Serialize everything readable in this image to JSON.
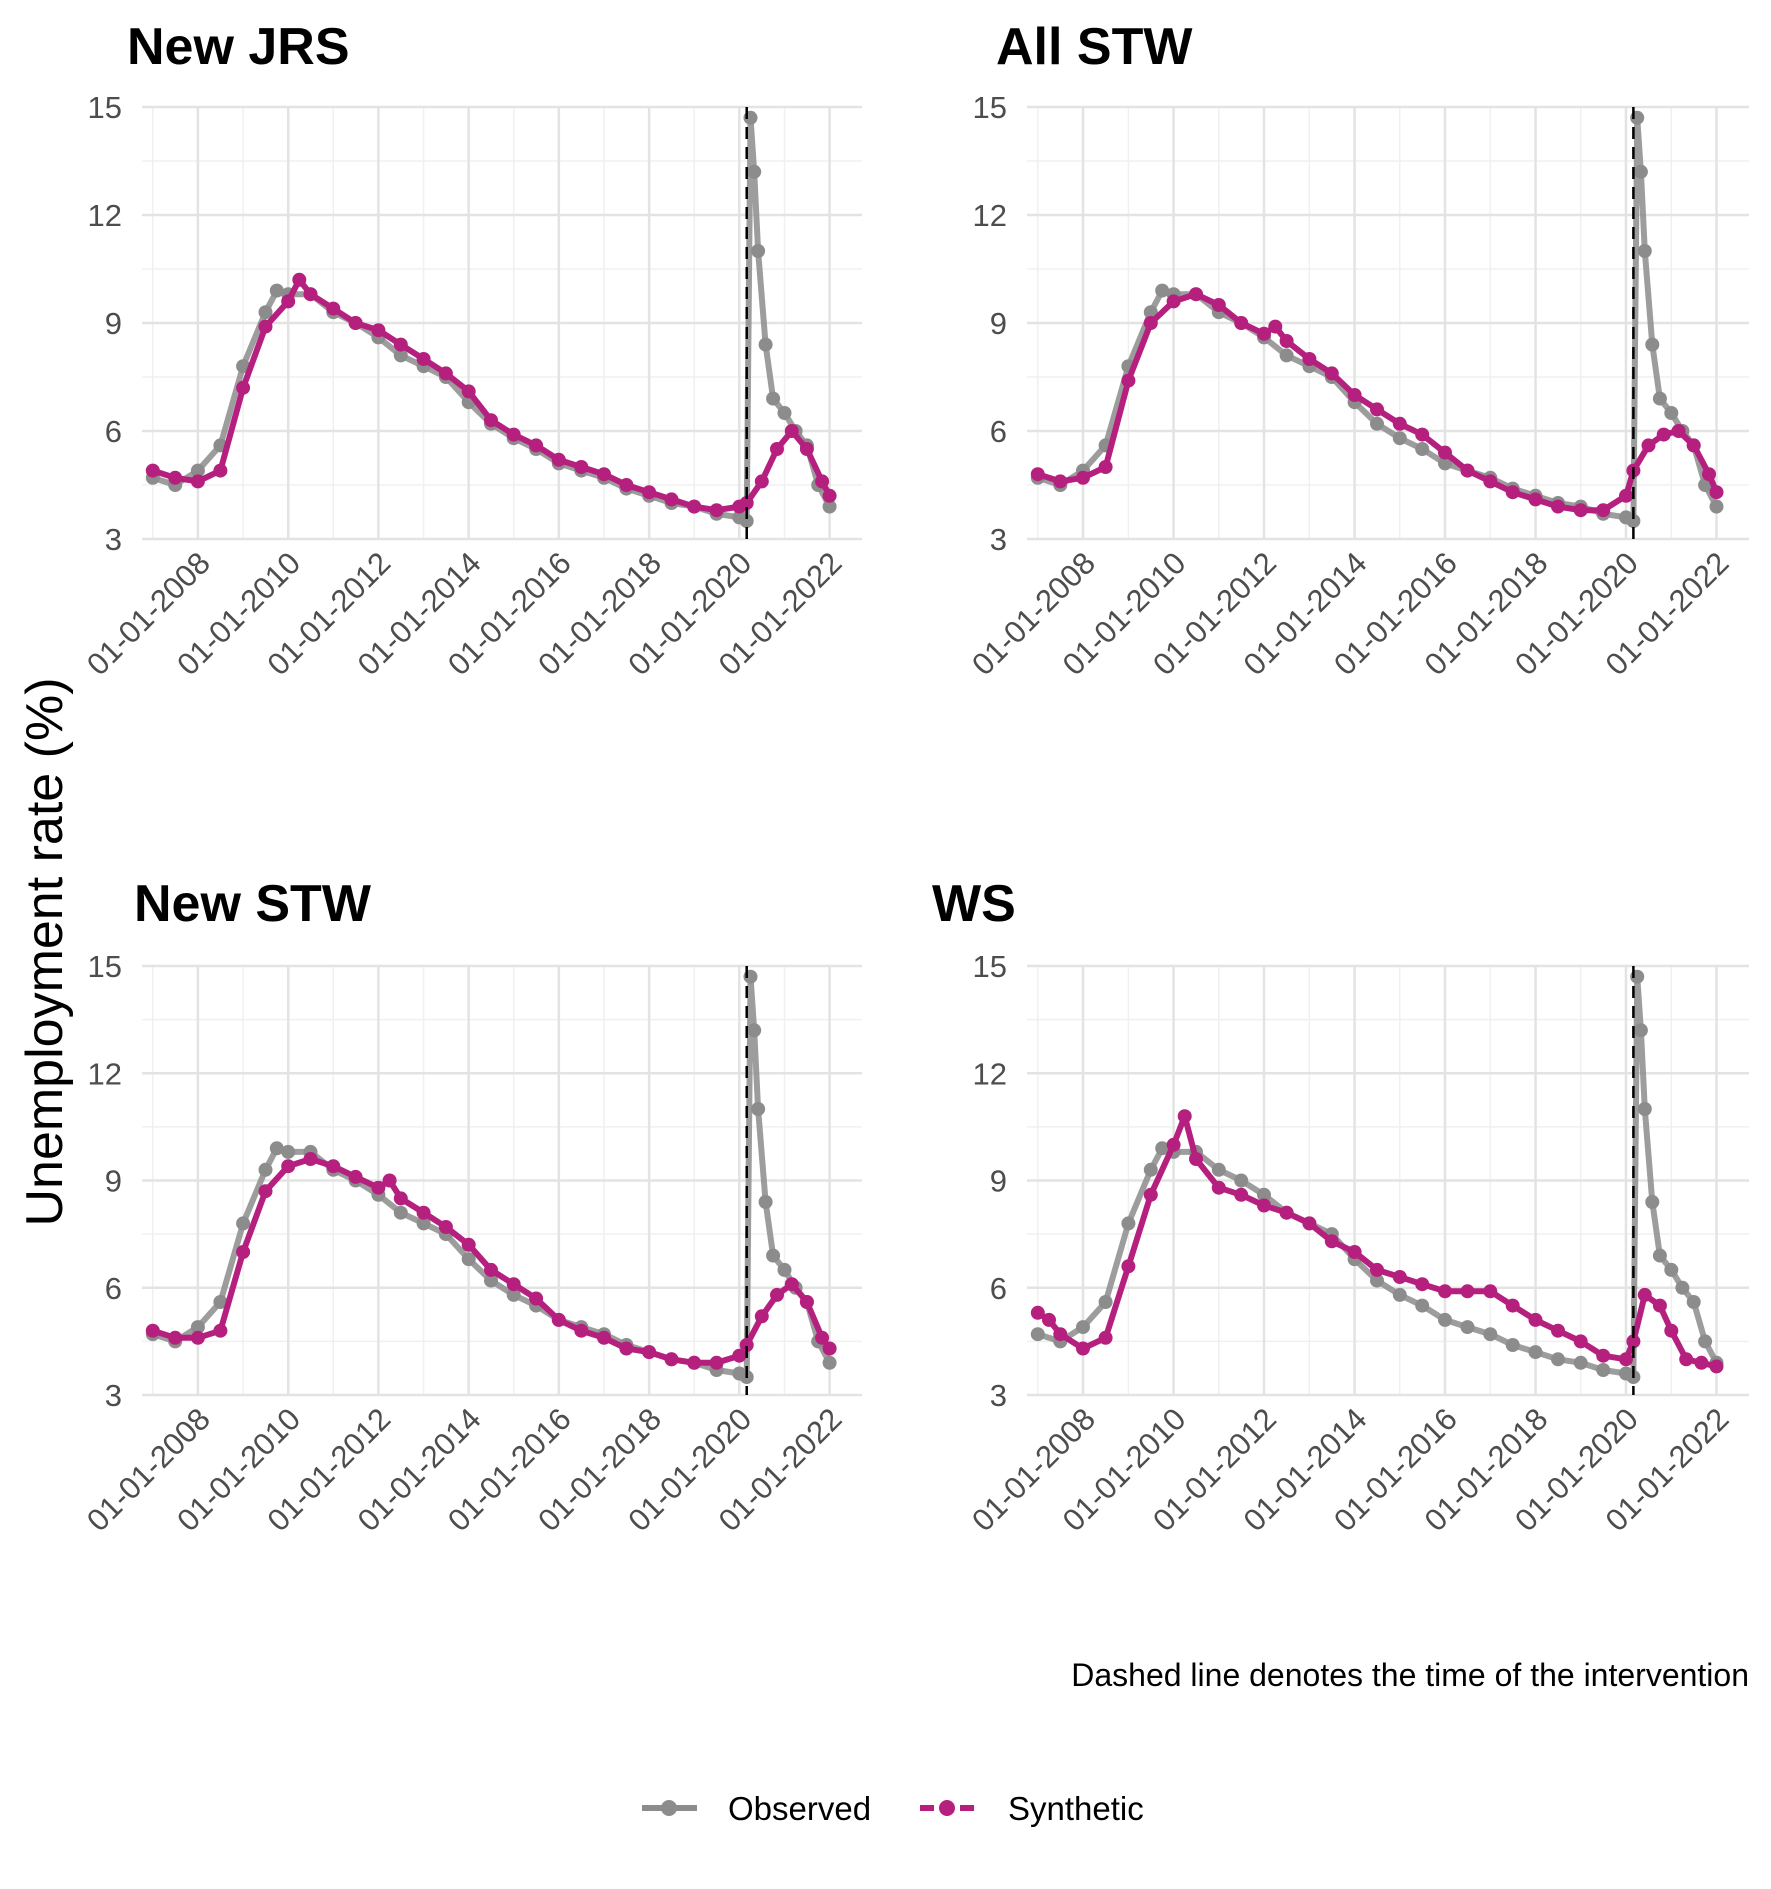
{
  "chart_data": [
    {
      "type": "line",
      "title": "New JRS",
      "ylim": [
        3,
        15
      ],
      "yticks": [
        3,
        6,
        9,
        12,
        15
      ],
      "xticks": [
        "01-01-2008",
        "01-01-2010",
        "01-01-2012",
        "01-01-2014",
        "01-01-2016",
        "01-01-2018",
        "01-01-2020",
        "01-01-2022"
      ],
      "xrange": [
        "2007-01-01",
        "2022-01-01"
      ],
      "intervention": "2020-03-01",
      "series": [
        {
          "name": "Observed",
          "color": "#8c8c8c",
          "x": [
            "2007-01-01",
            "2007-07-01",
            "2008-01-01",
            "2008-07-01",
            "2009-01-01",
            "2009-07-01",
            "2009-10-01",
            "2010-01-01",
            "2010-07-01",
            "2011-01-01",
            "2011-07-01",
            "2012-01-01",
            "2012-07-01",
            "2013-01-01",
            "2013-07-01",
            "2014-01-01",
            "2014-07-01",
            "2015-01-01",
            "2015-07-01",
            "2016-01-01",
            "2016-07-01",
            "2017-01-01",
            "2017-07-01",
            "2018-01-01",
            "2018-07-01",
            "2019-01-01",
            "2019-07-01",
            "2020-01-01",
            "2020-03-01",
            "2020-04-01",
            "2020-05-01",
            "2020-06-01",
            "2020-08-01",
            "2020-10-01",
            "2021-01-01",
            "2021-04-01",
            "2021-07-01",
            "2021-10-01",
            "2022-01-01"
          ],
          "y": [
            4.7,
            4.5,
            4.9,
            5.6,
            7.8,
            9.3,
            9.9,
            9.8,
            9.8,
            9.3,
            9.0,
            8.6,
            8.1,
            7.8,
            7.5,
            6.8,
            6.2,
            5.8,
            5.5,
            5.1,
            4.9,
            4.7,
            4.4,
            4.2,
            4.0,
            3.9,
            3.7,
            3.6,
            3.5,
            14.7,
            13.2,
            11.0,
            8.4,
            6.9,
            6.5,
            6.0,
            5.6,
            4.5,
            3.9
          ]
        },
        {
          "name": "Synthetic",
          "color": "#b5207f",
          "x": [
            "2007-01-01",
            "2007-07-01",
            "2008-01-01",
            "2008-07-01",
            "2009-01-01",
            "2009-07-01",
            "2010-01-01",
            "2010-04-01",
            "2010-07-01",
            "2011-01-01",
            "2011-07-01",
            "2012-01-01",
            "2012-07-01",
            "2013-01-01",
            "2013-07-01",
            "2014-01-01",
            "2014-07-01",
            "2015-01-01",
            "2015-07-01",
            "2016-01-01",
            "2016-07-01",
            "2017-01-01",
            "2017-07-01",
            "2018-01-01",
            "2018-07-01",
            "2019-01-01",
            "2019-07-01",
            "2020-01-01",
            "2020-03-01",
            "2020-07-01",
            "2020-11-01",
            "2021-03-01",
            "2021-07-01",
            "2021-11-01",
            "2022-01-01"
          ],
          "y": [
            4.9,
            4.7,
            4.6,
            4.9,
            7.2,
            8.9,
            9.6,
            10.2,
            9.8,
            9.4,
            9.0,
            8.8,
            8.4,
            8.0,
            7.6,
            7.1,
            6.3,
            5.9,
            5.6,
            5.2,
            5.0,
            4.8,
            4.5,
            4.3,
            4.1,
            3.9,
            3.8,
            3.9,
            4.0,
            4.6,
            5.5,
            6.0,
            5.5,
            4.6,
            4.2
          ]
        }
      ]
    },
    {
      "type": "line",
      "title": "All STW",
      "ylim": [
        3,
        15
      ],
      "yticks": [
        3,
        6,
        9,
        12,
        15
      ],
      "xticks": [
        "01-01-2008",
        "01-01-2010",
        "01-01-2012",
        "01-01-2014",
        "01-01-2016",
        "01-01-2018",
        "01-01-2020",
        "01-01-2022"
      ],
      "xrange": [
        "2007-01-01",
        "2022-01-01"
      ],
      "intervention": "2020-03-01",
      "series": [
        {
          "name": "Observed",
          "color": "#8c8c8c",
          "x": [
            "2007-01-01",
            "2007-07-01",
            "2008-01-01",
            "2008-07-01",
            "2009-01-01",
            "2009-07-01",
            "2009-10-01",
            "2010-01-01",
            "2010-07-01",
            "2011-01-01",
            "2011-07-01",
            "2012-01-01",
            "2012-07-01",
            "2013-01-01",
            "2013-07-01",
            "2014-01-01",
            "2014-07-01",
            "2015-01-01",
            "2015-07-01",
            "2016-01-01",
            "2016-07-01",
            "2017-01-01",
            "2017-07-01",
            "2018-01-01",
            "2018-07-01",
            "2019-01-01",
            "2019-07-01",
            "2020-01-01",
            "2020-03-01",
            "2020-04-01",
            "2020-05-01",
            "2020-06-01",
            "2020-08-01",
            "2020-10-01",
            "2021-01-01",
            "2021-04-01",
            "2021-07-01",
            "2021-10-01",
            "2022-01-01"
          ],
          "y": [
            4.7,
            4.5,
            4.9,
            5.6,
            7.8,
            9.3,
            9.9,
            9.8,
            9.8,
            9.3,
            9.0,
            8.6,
            8.1,
            7.8,
            7.5,
            6.8,
            6.2,
            5.8,
            5.5,
            5.1,
            4.9,
            4.7,
            4.4,
            4.2,
            4.0,
            3.9,
            3.7,
            3.6,
            3.5,
            14.7,
            13.2,
            11.0,
            8.4,
            6.9,
            6.5,
            6.0,
            5.6,
            4.5,
            3.9
          ]
        },
        {
          "name": "Synthetic",
          "color": "#b5207f",
          "x": [
            "2007-01-01",
            "2007-07-01",
            "2008-01-01",
            "2008-07-01",
            "2009-01-01",
            "2009-07-01",
            "2010-01-01",
            "2010-07-01",
            "2011-01-01",
            "2011-07-01",
            "2012-01-01",
            "2012-04-01",
            "2012-07-01",
            "2013-01-01",
            "2013-07-01",
            "2014-01-01",
            "2014-07-01",
            "2015-01-01",
            "2015-07-01",
            "2016-01-01",
            "2016-07-01",
            "2017-01-01",
            "2017-07-01",
            "2018-01-01",
            "2018-07-01",
            "2019-01-01",
            "2019-07-01",
            "2020-01-01",
            "2020-03-01",
            "2020-07-01",
            "2020-11-01",
            "2021-03-01",
            "2021-07-01",
            "2021-11-01",
            "2022-01-01"
          ],
          "y": [
            4.8,
            4.6,
            4.7,
            5.0,
            7.4,
            9.0,
            9.6,
            9.8,
            9.5,
            9.0,
            8.7,
            8.9,
            8.5,
            8.0,
            7.6,
            7.0,
            6.6,
            6.2,
            5.9,
            5.4,
            4.9,
            4.6,
            4.3,
            4.1,
            3.9,
            3.8,
            3.8,
            4.2,
            4.9,
            5.6,
            5.9,
            6.0,
            5.6,
            4.8,
            4.3
          ]
        }
      ]
    },
    {
      "type": "line",
      "title": "New STW",
      "ylim": [
        3,
        15
      ],
      "yticks": [
        3,
        6,
        9,
        12,
        15
      ],
      "xticks": [
        "01-01-2008",
        "01-01-2010",
        "01-01-2012",
        "01-01-2014",
        "01-01-2016",
        "01-01-2018",
        "01-01-2020",
        "01-01-2022"
      ],
      "xrange": [
        "2007-01-01",
        "2022-01-01"
      ],
      "intervention": "2020-03-01",
      "series": [
        {
          "name": "Observed",
          "color": "#8c8c8c",
          "x": [
            "2007-01-01",
            "2007-07-01",
            "2008-01-01",
            "2008-07-01",
            "2009-01-01",
            "2009-07-01",
            "2009-10-01",
            "2010-01-01",
            "2010-07-01",
            "2011-01-01",
            "2011-07-01",
            "2012-01-01",
            "2012-07-01",
            "2013-01-01",
            "2013-07-01",
            "2014-01-01",
            "2014-07-01",
            "2015-01-01",
            "2015-07-01",
            "2016-01-01",
            "2016-07-01",
            "2017-01-01",
            "2017-07-01",
            "2018-01-01",
            "2018-07-01",
            "2019-01-01",
            "2019-07-01",
            "2020-01-01",
            "2020-03-01",
            "2020-04-01",
            "2020-05-01",
            "2020-06-01",
            "2020-08-01",
            "2020-10-01",
            "2021-01-01",
            "2021-04-01",
            "2021-07-01",
            "2021-10-01",
            "2022-01-01"
          ],
          "y": [
            4.7,
            4.5,
            4.9,
            5.6,
            7.8,
            9.3,
            9.9,
            9.8,
            9.8,
            9.3,
            9.0,
            8.6,
            8.1,
            7.8,
            7.5,
            6.8,
            6.2,
            5.8,
            5.5,
            5.1,
            4.9,
            4.7,
            4.4,
            4.2,
            4.0,
            3.9,
            3.7,
            3.6,
            3.5,
            14.7,
            13.2,
            11.0,
            8.4,
            6.9,
            6.5,
            6.0,
            5.6,
            4.5,
            3.9
          ]
        },
        {
          "name": "Synthetic",
          "color": "#b5207f",
          "x": [
            "2007-01-01",
            "2007-07-01",
            "2008-01-01",
            "2008-07-01",
            "2009-01-01",
            "2009-07-01",
            "2010-01-01",
            "2010-07-01",
            "2011-01-01",
            "2011-07-01",
            "2012-01-01",
            "2012-04-01",
            "2012-07-01",
            "2013-01-01",
            "2013-07-01",
            "2014-01-01",
            "2014-07-01",
            "2015-01-01",
            "2015-07-01",
            "2016-01-01",
            "2016-07-01",
            "2017-01-01",
            "2017-07-01",
            "2018-01-01",
            "2018-07-01",
            "2019-01-01",
            "2019-07-01",
            "2020-01-01",
            "2020-03-01",
            "2020-07-01",
            "2020-11-01",
            "2021-03-01",
            "2021-07-01",
            "2021-11-01",
            "2022-01-01"
          ],
          "y": [
            4.8,
            4.6,
            4.6,
            4.8,
            7.0,
            8.7,
            9.4,
            9.6,
            9.4,
            9.1,
            8.8,
            9.0,
            8.5,
            8.1,
            7.7,
            7.2,
            6.5,
            6.1,
            5.7,
            5.1,
            4.8,
            4.6,
            4.3,
            4.2,
            4.0,
            3.9,
            3.9,
            4.1,
            4.4,
            5.2,
            5.8,
            6.1,
            5.6,
            4.6,
            4.3
          ]
        }
      ]
    },
    {
      "type": "line",
      "title": "WS",
      "ylim": [
        3,
        15
      ],
      "yticks": [
        3,
        6,
        9,
        12,
        15
      ],
      "xticks": [
        "01-01-2008",
        "01-01-2010",
        "01-01-2012",
        "01-01-2014",
        "01-01-2016",
        "01-01-2018",
        "01-01-2020",
        "01-01-2022"
      ],
      "xrange": [
        "2007-01-01",
        "2022-01-01"
      ],
      "intervention": "2020-03-01",
      "series": [
        {
          "name": "Observed",
          "color": "#8c8c8c",
          "x": [
            "2007-01-01",
            "2007-07-01",
            "2008-01-01",
            "2008-07-01",
            "2009-01-01",
            "2009-07-01",
            "2009-10-01",
            "2010-01-01",
            "2010-07-01",
            "2011-01-01",
            "2011-07-01",
            "2012-01-01",
            "2012-07-01",
            "2013-01-01",
            "2013-07-01",
            "2014-01-01",
            "2014-07-01",
            "2015-01-01",
            "2015-07-01",
            "2016-01-01",
            "2016-07-01",
            "2017-01-01",
            "2017-07-01",
            "2018-01-01",
            "2018-07-01",
            "2019-01-01",
            "2019-07-01",
            "2020-01-01",
            "2020-03-01",
            "2020-04-01",
            "2020-05-01",
            "2020-06-01",
            "2020-08-01",
            "2020-10-01",
            "2021-01-01",
            "2021-04-01",
            "2021-07-01",
            "2021-10-01",
            "2022-01-01"
          ],
          "y": [
            4.7,
            4.5,
            4.9,
            5.6,
            7.8,
            9.3,
            9.9,
            9.8,
            9.8,
            9.3,
            9.0,
            8.6,
            8.1,
            7.8,
            7.5,
            6.8,
            6.2,
            5.8,
            5.5,
            5.1,
            4.9,
            4.7,
            4.4,
            4.2,
            4.0,
            3.9,
            3.7,
            3.6,
            3.5,
            14.7,
            13.2,
            11.0,
            8.4,
            6.9,
            6.5,
            6.0,
            5.6,
            4.5,
            3.9
          ]
        },
        {
          "name": "Synthetic",
          "color": "#b5207f",
          "x": [
            "2007-01-01",
            "2007-04-01",
            "2007-07-01",
            "2008-01-01",
            "2008-07-01",
            "2009-01-01",
            "2009-07-01",
            "2010-01-01",
            "2010-04-01",
            "2010-07-01",
            "2011-01-01",
            "2011-07-01",
            "2012-01-01",
            "2012-07-01",
            "2013-01-01",
            "2013-07-01",
            "2014-01-01",
            "2014-07-01",
            "2015-01-01",
            "2015-07-01",
            "2016-01-01",
            "2016-07-01",
            "2017-01-01",
            "2017-07-01",
            "2018-01-01",
            "2018-07-01",
            "2019-01-01",
            "2019-07-01",
            "2020-01-01",
            "2020-03-01",
            "2020-06-01",
            "2020-10-01",
            "2021-01-01",
            "2021-05-01",
            "2021-09-01",
            "2022-01-01"
          ],
          "y": [
            5.3,
            5.1,
            4.7,
            4.3,
            4.6,
            6.6,
            8.6,
            10.0,
            10.8,
            9.6,
            8.8,
            8.6,
            8.3,
            8.1,
            7.8,
            7.3,
            7.0,
            6.5,
            6.3,
            6.1,
            5.9,
            5.9,
            5.9,
            5.5,
            5.1,
            4.8,
            4.5,
            4.1,
            4.0,
            4.5,
            5.8,
            5.5,
            4.8,
            4.0,
            3.9,
            3.8
          ]
        }
      ]
    }
  ],
  "ylabel": "Unemployment rate (%)",
  "caption": "Dashed line denotes the time of the intervention",
  "legend": [
    {
      "label": "Observed",
      "color": "#8c8c8c"
    },
    {
      "label": "Synthetic",
      "color": "#b5207f"
    }
  ]
}
